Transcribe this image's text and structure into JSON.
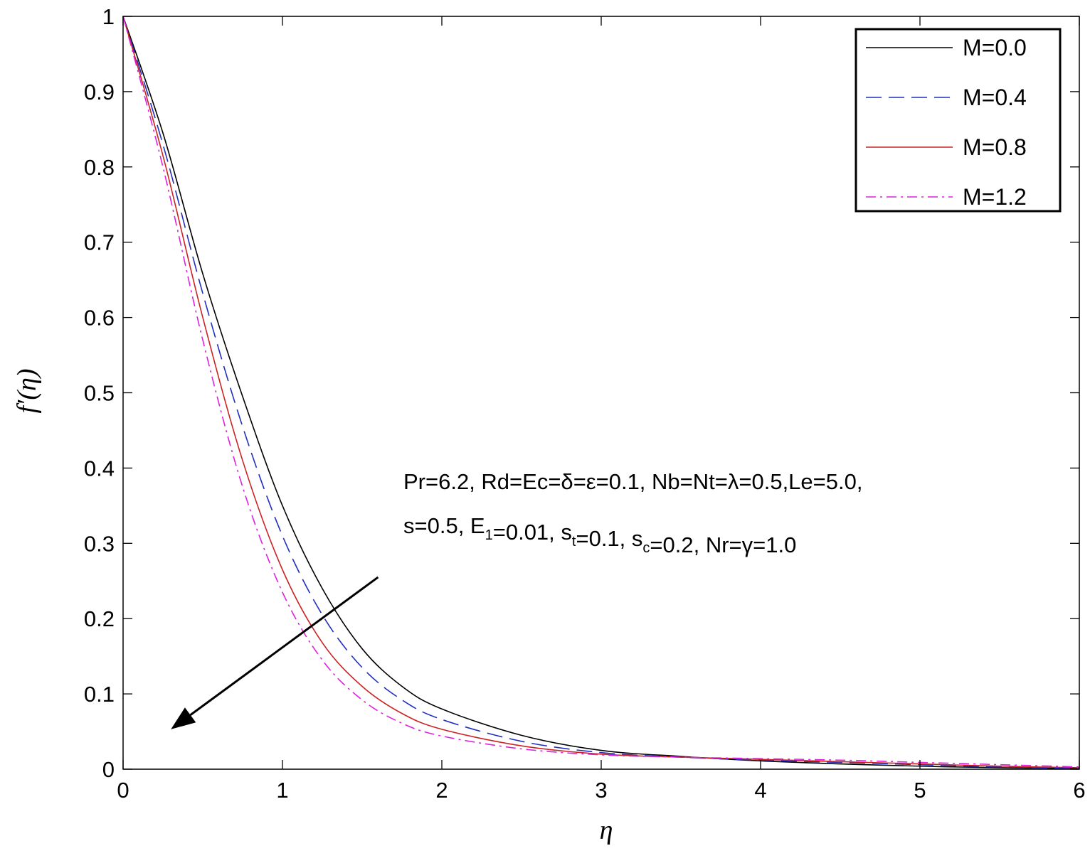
{
  "chart_data": {
    "type": "line",
    "title": "",
    "xlabel": "η",
    "ylabel": "f′(η)",
    "xlim": [
      0,
      6
    ],
    "ylim": [
      0,
      1
    ],
    "x_ticks": [
      "0",
      "1",
      "2",
      "3",
      "4",
      "5",
      "6"
    ],
    "y_ticks": [
      "0",
      "0.1",
      "0.2",
      "0.3",
      "0.4",
      "0.5",
      "0.6",
      "0.7",
      "0.8",
      "0.9",
      "1"
    ],
    "grid": false,
    "legend_position": "top-right",
    "x": [
      0,
      0.25,
      0.5,
      0.75,
      1.0,
      1.25,
      1.5,
      1.75,
      2.0,
      2.5,
      3.0,
      3.5,
      4.0,
      4.5,
      5.0,
      5.5,
      6.0
    ],
    "series": [
      {
        "name": "M=0.0",
        "color": "#000000",
        "dash": "solid",
        "values": [
          1.0,
          0.845,
          0.658,
          0.495,
          0.35,
          0.24,
          0.16,
          0.11,
          0.08,
          0.045,
          0.025,
          0.017,
          0.011,
          0.007,
          0.004,
          0.002,
          0.001
        ]
      },
      {
        "name": "M=0.4",
        "color": "#1f2fbf",
        "dash": "dashed",
        "values": [
          1.0,
          0.83,
          0.632,
          0.455,
          0.31,
          0.205,
          0.135,
          0.092,
          0.066,
          0.037,
          0.022,
          0.016,
          0.012,
          0.009,
          0.006,
          0.003,
          0.001
        ]
      },
      {
        "name": "M=0.8",
        "color": "#cc2222",
        "dash": "solid",
        "values": [
          1.0,
          0.815,
          0.6,
          0.41,
          0.265,
          0.168,
          0.11,
          0.074,
          0.053,
          0.031,
          0.02,
          0.016,
          0.013,
          0.01,
          0.007,
          0.004,
          0.002
        ]
      },
      {
        "name": "M=1.2",
        "color": "#dd22dd",
        "dash": "dashdot",
        "values": [
          1.0,
          0.8,
          0.57,
          0.375,
          0.235,
          0.145,
          0.092,
          0.061,
          0.044,
          0.027,
          0.019,
          0.016,
          0.014,
          0.012,
          0.009,
          0.006,
          0.003
        ]
      }
    ],
    "annotations": [
      {
        "line": 1,
        "parts": [
          {
            "text": "Pr=6.2, Rd=Ec=δ=ε=0.1, Nb=Nt=λ=0.5,Le=5.0,"
          }
        ]
      },
      {
        "line": 2,
        "parts": [
          {
            "text": "s=0.5, E"
          },
          {
            "text": "1",
            "sub": true
          },
          {
            "text": "=0.01, s"
          },
          {
            "text": "t",
            "sub": true
          },
          {
            "text": "=0.1, s"
          },
          {
            "text": "c",
            "sub": true
          },
          {
            "text": "=0.2, Nr=γ=1.0"
          }
        ]
      }
    ],
    "arrow": {
      "description": "direction of increasing M",
      "from": [
        1.6,
        0.255
      ],
      "to": [
        0.3,
        0.053
      ]
    }
  }
}
